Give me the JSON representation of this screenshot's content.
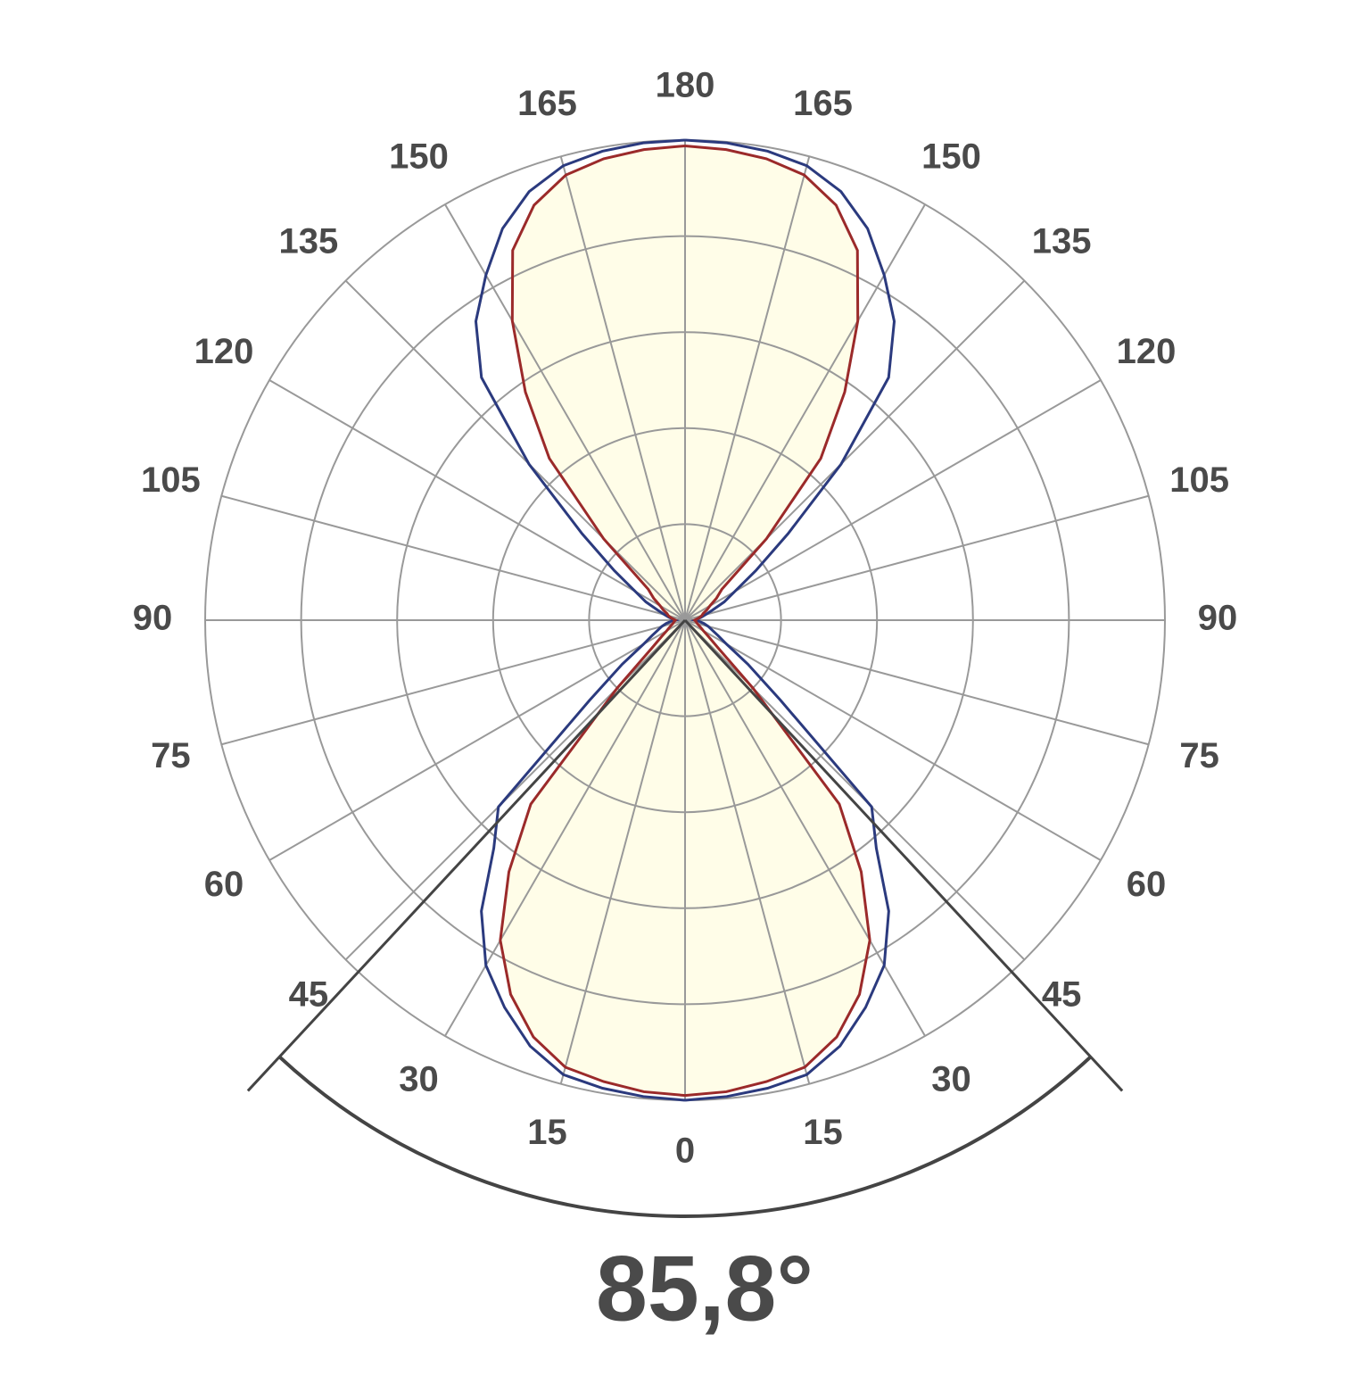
{
  "chart_data": {
    "type": "polar",
    "angles": [
      0,
      5,
      10,
      15,
      20,
      25,
      30,
      35,
      40,
      45,
      50,
      55,
      60,
      65,
      70,
      75,
      80,
      85,
      90,
      95,
      100,
      105,
      110,
      115,
      120,
      125,
      130,
      135,
      140,
      145,
      150,
      155,
      160,
      165,
      170,
      175,
      180
    ],
    "series": [
      {
        "color": "#2b3a7e",
        "values": [
          5.0,
          4.98,
          4.95,
          4.9,
          4.72,
          4.45,
          4.15,
          3.7,
          3.1,
          2.75,
          1.3,
          0.8,
          0.5,
          0.38,
          0.3,
          0.25,
          0.2,
          0.15,
          0.1,
          0.13,
          0.17,
          0.22,
          0.3,
          0.45,
          0.6,
          0.9,
          1.4,
          2.3,
          3.3,
          3.8,
          4.15,
          4.5,
          4.75,
          4.9,
          4.96,
          4.99,
          5.0
        ]
      },
      {
        "color": "#9b2a2a",
        "values": [
          4.95,
          4.93,
          4.88,
          4.82,
          4.62,
          4.3,
          3.85,
          3.2,
          2.5,
          1.0,
          0.45,
          0.3,
          0.22,
          0.18,
          0.15,
          0.13,
          0.12,
          0.11,
          0.1,
          0.12,
          0.15,
          0.18,
          0.2,
          0.25,
          0.3,
          0.4,
          0.5,
          1.2,
          2.2,
          2.9,
          3.6,
          4.25,
          4.6,
          4.8,
          4.88,
          4.92,
          4.94
        ]
      }
    ],
    "fill_color": "#fffde8",
    "rlim": [
      0,
      5
    ],
    "rticks": [
      1,
      2,
      3,
      4,
      5
    ],
    "angle_ticks": [
      0,
      15,
      30,
      45,
      60,
      75,
      90,
      105,
      120,
      135,
      150,
      165,
      180
    ],
    "beam_angle": {
      "value": 85.8,
      "label": "85,8°"
    }
  }
}
